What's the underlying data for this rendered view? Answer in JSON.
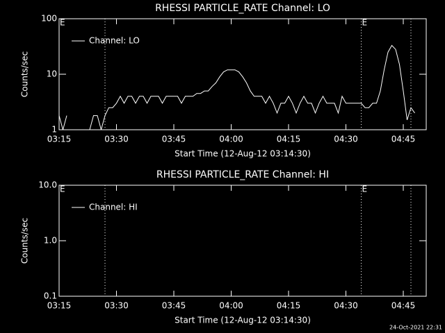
{
  "chart_data": [
    {
      "type": "line",
      "title": "RHESSI PARTICLE_RATE Channel: LO",
      "xlabel": "Start Time (12-Aug-12 03:14:30)",
      "ylabel": "Counts/sec",
      "x": [
        "03:15",
        "03:16",
        "03:17",
        "03:18",
        "03:19",
        "03:20",
        "03:21",
        "03:22",
        "03:23",
        "03:24",
        "03:25",
        "03:26",
        "03:27",
        "03:28",
        "03:29",
        "03:30",
        "03:31",
        "03:32",
        "03:33",
        "03:34",
        "03:35",
        "03:36",
        "03:37",
        "03:38",
        "03:39",
        "03:40",
        "03:41",
        "03:42",
        "03:43",
        "03:44",
        "03:45",
        "03:46",
        "03:47",
        "03:48",
        "03:49",
        "03:50",
        "03:51",
        "03:52",
        "03:53",
        "03:54",
        "03:55",
        "03:56",
        "03:57",
        "03:58",
        "03:59",
        "04:00",
        "04:01",
        "04:02",
        "04:03",
        "04:04",
        "04:05",
        "04:06",
        "04:07",
        "04:08",
        "04:09",
        "04:10",
        "04:11",
        "04:12",
        "04:13",
        "04:14",
        "04:15",
        "04:16",
        "04:17",
        "04:18",
        "04:19",
        "04:20",
        "04:21",
        "04:22",
        "04:23",
        "04:24",
        "04:25",
        "04:26",
        "04:27",
        "04:28",
        "04:29",
        "04:30",
        "04:31",
        "04:32",
        "04:33",
        "04:34",
        "04:35",
        "04:36",
        "04:37",
        "04:38",
        "04:39",
        "04:40",
        "04:41",
        "04:42",
        "04:43",
        "04:44",
        "04:45",
        "04:46",
        "04:47",
        "04:48"
      ],
      "series": [
        {
          "name": "Channel: LO",
          "color": "#ffffff",
          "values": [
            1.8,
            1,
            1.8,
            null,
            null,
            null,
            null,
            null,
            1,
            1.8,
            1.8,
            1,
            1.8,
            2.5,
            2.5,
            3,
            4,
            3,
            4,
            4,
            3,
            4,
            4,
            3,
            4,
            4,
            4,
            3,
            4,
            4,
            4,
            4,
            3,
            4,
            4,
            4,
            4.5,
            4.5,
            5,
            5,
            6,
            7,
            9,
            11,
            12,
            12,
            12,
            11,
            9,
            7,
            5,
            4,
            4,
            4,
            3,
            4,
            3,
            2,
            3,
            3,
            4,
            3,
            2,
            3,
            4,
            3,
            3,
            2,
            3,
            4,
            3,
            3,
            3,
            2,
            4,
            3,
            3,
            3,
            3,
            3,
            2.5,
            2.5,
            3,
            3,
            5,
            12,
            25,
            33,
            28,
            15,
            5,
            1.5,
            2.5,
            2
          ]
        }
      ],
      "xlim": [
        "03:15",
        "04:51"
      ],
      "xticks": [
        "03:15",
        "03:30",
        "03:45",
        "04:00",
        "04:15",
        "04:30",
        "04:45"
      ],
      "ylim": [
        1,
        100
      ],
      "yticks": [
        1,
        10,
        100
      ],
      "log_y": true,
      "legend": "top-left",
      "vlines": [
        "03:27",
        "04:34",
        "04:47"
      ],
      "annotations": [
        {
          "text": "E",
          "x": "03:15"
        },
        {
          "text": "E",
          "x": "04:34"
        }
      ]
    },
    {
      "type": "line",
      "title": "RHESSI PARTICLE_RATE Channel: HI",
      "xlabel": "Start Time (12-Aug-12 03:14:30)",
      "ylabel": "Counts/sec",
      "x": [],
      "series": [
        {
          "name": "Channel: HI",
          "color": "#ffffff",
          "values": []
        }
      ],
      "xlim": [
        "03:15",
        "04:51"
      ],
      "xticks": [
        "03:15",
        "03:30",
        "03:45",
        "04:00",
        "04:15",
        "04:30",
        "04:45"
      ],
      "ylim": [
        0.1,
        10
      ],
      "yticks": [
        {
          "value": 0.1,
          "label": "0.1"
        },
        {
          "value": 1,
          "label": "1.0"
        },
        {
          "value": 10,
          "label": "10.0"
        }
      ],
      "log_y": true,
      "legend": "top-left",
      "vlines": [
        "03:27",
        "04:34",
        "04:47"
      ],
      "annotations": [
        {
          "text": "E",
          "x": "03:15"
        },
        {
          "text": "E",
          "x": "04:34"
        }
      ]
    }
  ],
  "timestamp": "24-Oct-2021 22:31"
}
